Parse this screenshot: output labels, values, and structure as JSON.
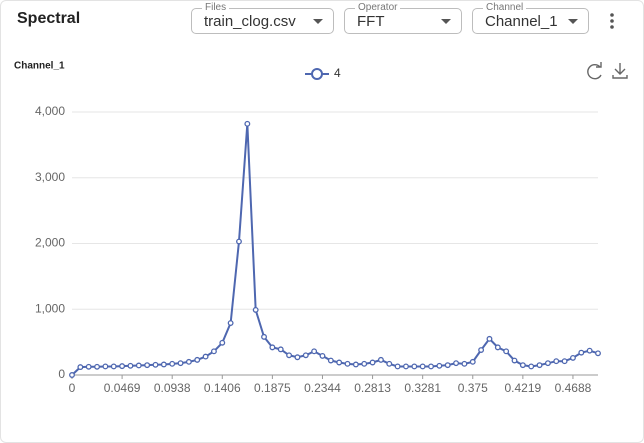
{
  "header": {
    "title": "Spectral",
    "fields": [
      {
        "label": "Files",
        "value": "train_clog.csv"
      },
      {
        "label": "Operator",
        "value": "FFT"
      },
      {
        "label": "Channel",
        "value": "Channel_1"
      }
    ]
  },
  "chart_data": {
    "type": "line",
    "ylabel": "Channel_1",
    "categories": [
      "0",
      null,
      null,
      null,
      null,
      null,
      "0.0469",
      null,
      null,
      null,
      null,
      null,
      "0.0938",
      null,
      null,
      null,
      null,
      null,
      "0.1406",
      null,
      null,
      null,
      null,
      null,
      "0.1875",
      null,
      null,
      null,
      null,
      null,
      "0.2344",
      null,
      null,
      null,
      null,
      null,
      "0.2813",
      null,
      null,
      null,
      null,
      null,
      "0.3281",
      null,
      null,
      null,
      null,
      null,
      "0.375",
      null,
      null,
      null,
      null,
      null,
      "0.4219",
      null,
      null,
      null,
      null,
      null,
      "0.4688",
      null,
      null,
      null
    ],
    "series": [
      {
        "name": "4",
        "color": "#4e67b0",
        "values": [
          0,
          120,
          125,
          125,
          130,
          130,
          135,
          140,
          145,
          150,
          155,
          160,
          170,
          180,
          200,
          230,
          280,
          360,
          490,
          790,
          2030,
          3820,
          990,
          580,
          420,
          390,
          300,
          270,
          300,
          360,
          290,
          220,
          190,
          170,
          160,
          170,
          190,
          230,
          170,
          130,
          130,
          130,
          130,
          130,
          140,
          150,
          180,
          170,
          200,
          380,
          550,
          420,
          360,
          220,
          150,
          130,
          150,
          180,
          210,
          210,
          260,
          340,
          370,
          330
        ]
      }
    ],
    "ylim": [
      0,
      4000
    ],
    "yticks": [
      0,
      {
        "value": 1000,
        "label": "1,000"
      },
      {
        "value": 2000,
        "label": "2,000"
      },
      {
        "value": 3000,
        "label": "3,000"
      },
      {
        "value": 4000,
        "label": "4,000"
      }
    ],
    "grid": true
  }
}
